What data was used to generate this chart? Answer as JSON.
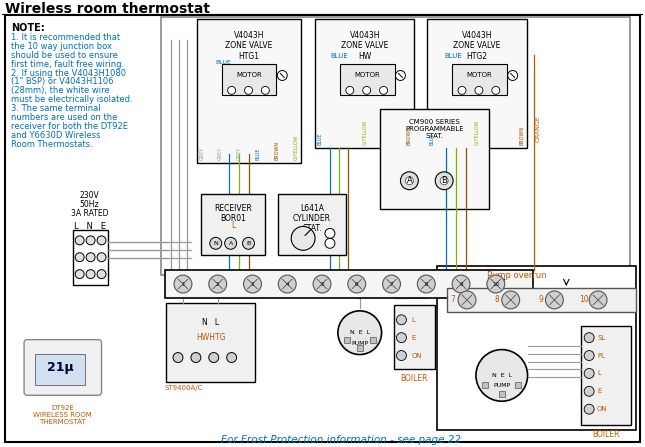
{
  "title": "Wireless room thermostat",
  "bg_color": "#ffffff",
  "border_color": "#000000",
  "title_color": "#000000",
  "blue_color": "#0070c0",
  "orange_color": "#c05a00",
  "note_title": "NOTE:",
  "note_lines": [
    "1. It is recommended that",
    "the 10 way junction box",
    "should be used to ensure",
    "first time, fault free wiring.",
    "2. If using the V4043H1080",
    "(1\" BSP) or V4043H1106",
    "(28mm), the white wire",
    "must be electrically isolated.",
    "3. The same terminal",
    "numbers are used on the",
    "receiver for both the DT92E",
    "and Y6630D Wireless",
    "Room Thermostats."
  ],
  "frost_label": "For Frost Protection information - see page 22",
  "dt92e_label": "DT92E\nWIRELESS ROOM\nTHERMOSTAT",
  "wire_colors": {
    "grey": "#999999",
    "blue": "#0070c0",
    "brown": "#964B00",
    "g_yellow": "#7ab600",
    "orange": "#c05a00"
  }
}
